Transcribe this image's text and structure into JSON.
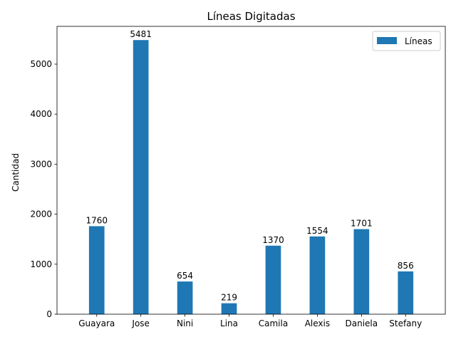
{
  "chart_data": {
    "type": "bar",
    "title": "Líneas Digitadas",
    "xlabel": "",
    "ylabel": "Cantidad",
    "categories": [
      "Guayara",
      "Jose",
      "Nini",
      "Lina",
      "Camila",
      "Alexis",
      "Daniela",
      "Stefany"
    ],
    "series": [
      {
        "name": "Líneas",
        "color": "#1f77b4",
        "values": [
          1760,
          5481,
          654,
          219,
          1370,
          1554,
          1701,
          856
        ]
      }
    ],
    "ylim": [
      0,
      5755
    ],
    "yticks": [
      0,
      1000,
      2000,
      3000,
      4000,
      5000
    ],
    "legend_position": "top-right",
    "grid": false,
    "data_labels": true
  }
}
